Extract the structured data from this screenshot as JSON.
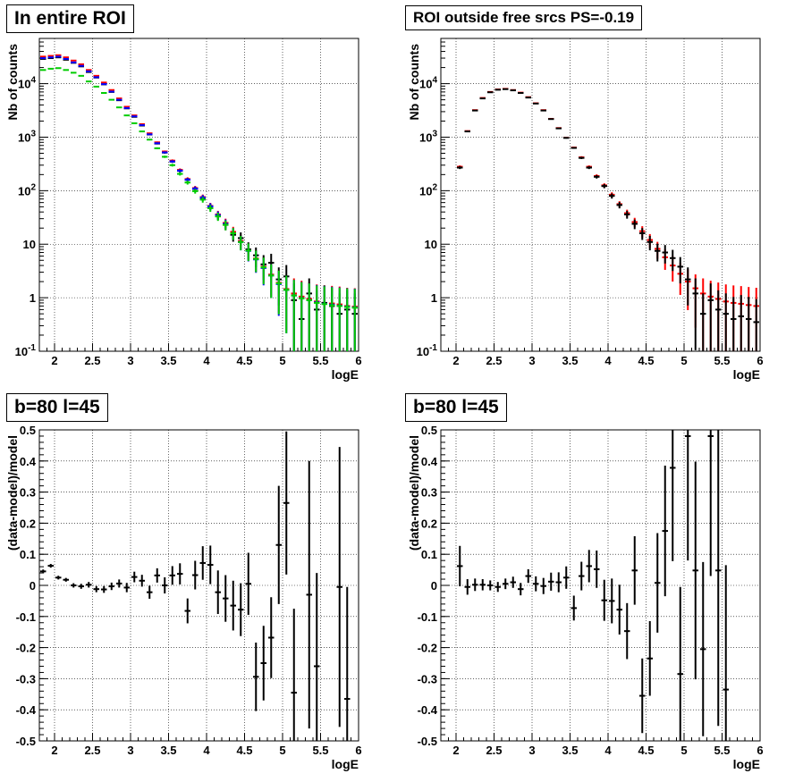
{
  "chart_data": [
    {
      "type": "scatter",
      "title": "In entire ROI",
      "xlabel": "logE",
      "ylabel": "Nb of counts",
      "y_scale": "log",
      "xlim": [
        1.8,
        6.0
      ],
      "ylim": [
        0.1,
        70000
      ],
      "x_ticks": [
        "2",
        "2.5",
        "3",
        "3.5",
        "4",
        "4.5",
        "5",
        "5.5",
        "6"
      ],
      "y_ticks": [
        "10^{-1}",
        "1",
        "10",
        "10^{2}",
        "10^{3}",
        "10^{4}"
      ],
      "grid": true,
      "x": [
        1.85,
        1.95,
        2.05,
        2.15,
        2.25,
        2.35,
        2.45,
        2.55,
        2.65,
        2.75,
        2.85,
        2.95,
        3.05,
        3.15,
        3.25,
        3.35,
        3.45,
        3.55,
        3.65,
        3.75,
        3.85,
        3.95,
        4.05,
        4.15,
        4.25,
        4.35,
        4.45,
        4.55,
        4.65,
        4.75,
        4.85,
        4.95,
        5.05,
        5.15,
        5.25,
        5.35,
        5.45,
        5.55,
        5.65,
        5.75,
        5.85,
        5.95
      ],
      "series": [
        {
          "color": "#ff0000",
          "values": [
            32000,
            33000,
            34000,
            31000,
            27000,
            23000,
            18000,
            14000,
            10500,
            7600,
            5300,
            3700,
            2550,
            1750,
            1180,
            800,
            540,
            365,
            245,
            165,
            112,
            76,
            52,
            36,
            25,
            17,
            11.5,
            7.8,
            5.4,
            3.8,
            2.7,
            1.9,
            1.45,
            1.2,
            1.05,
            0.95,
            0.85,
            0.8,
            0.78,
            0.75,
            0.7,
            0.68
          ]
        },
        {
          "color": "#000000",
          "values": [
            29000,
            30000,
            31000,
            28000,
            24500,
            21000,
            16500,
            13000,
            9700,
            7000,
            4900,
            3450,
            2400,
            1650,
            1120,
            760,
            515,
            350,
            235,
            160,
            108,
            73,
            50,
            34,
            23,
            15,
            13,
            8,
            6.2,
            4.2,
            4.5,
            2.2,
            2.5,
            0.9,
            0.4,
            1.2,
            0.6,
            0.8,
            0.7,
            0.5,
            0.6,
            0.5
          ]
        },
        {
          "color": "#0000ff",
          "values": [
            30000,
            31000,
            32000,
            29000,
            25000,
            21500,
            17000,
            13200,
            9800,
            7100,
            5000,
            3500,
            2450,
            1680,
            1130,
            770,
            520,
            352,
            237,
            160,
            109,
            74,
            51,
            35,
            24,
            16,
            11,
            7.5,
            5.2,
            3.6,
            2.6,
            1.8,
            1.4,
            1.1,
            0.98,
            0.9,
            0.82,
            0.77,
            0.74,
            0.71,
            0.68,
            0.66
          ]
        },
        {
          "color": "#00cc00",
          "values": [
            18000,
            19000,
            19500,
            18000,
            16000,
            14000,
            11000,
            8800,
            6700,
            5000,
            3600,
            2550,
            1820,
            1280,
            900,
            620,
            430,
            300,
            206,
            142,
            98,
            68,
            47,
            33,
            23,
            16,
            11,
            7.6,
            5.3,
            3.7,
            2.6,
            1.85,
            1.4,
            1.1,
            0.97,
            0.9,
            0.8,
            0.76,
            0.72,
            0.7,
            0.67,
            0.65
          ]
        }
      ]
    },
    {
      "type": "scatter",
      "title": "ROI outside free srcs PS=-0.19",
      "xlabel": "logE",
      "ylabel": "Nb of counts",
      "y_scale": "log",
      "xlim": [
        1.8,
        6.0
      ],
      "ylim": [
        0.1,
        70000
      ],
      "x_ticks": [
        "2",
        "2.5",
        "3",
        "3.5",
        "4",
        "4.5",
        "5",
        "5.5",
        "6"
      ],
      "y_ticks": [
        "10^{-1}",
        "1",
        "10",
        "10^{2}",
        "10^{3}",
        "10^{4}"
      ],
      "grid": true,
      "x": [
        2.05,
        2.15,
        2.25,
        2.35,
        2.45,
        2.55,
        2.65,
        2.75,
        2.85,
        2.95,
        3.05,
        3.15,
        3.25,
        3.35,
        3.45,
        3.55,
        3.65,
        3.75,
        3.85,
        3.95,
        4.05,
        4.15,
        4.25,
        4.35,
        4.45,
        4.55,
        4.65,
        4.75,
        4.85,
        4.95,
        5.05,
        5.15,
        5.25,
        5.35,
        5.45,
        5.55,
        5.65,
        5.75,
        5.85,
        5.95
      ],
      "series": [
        {
          "color": "#ff0000",
          "values": [
            280,
            1300,
            3200,
            5400,
            7000,
            7800,
            8000,
            7600,
            6800,
            5600,
            4300,
            3200,
            2200,
            1480,
            980,
            640,
            420,
            280,
            188,
            126,
            84,
            56,
            38,
            26,
            17.5,
            12,
            8.2,
            5.7,
            4,
            2.8,
            2.0,
            1.5,
            1.2,
            1.05,
            0.95,
            0.85,
            0.8,
            0.77,
            0.73,
            0.7
          ]
        },
        {
          "color": "#000000",
          "values": [
            270,
            1280,
            3150,
            5300,
            6900,
            7700,
            7900,
            7500,
            6700,
            5500,
            4250,
            3150,
            2180,
            1460,
            970,
            630,
            410,
            270,
            182,
            122,
            80,
            54,
            36,
            24,
            16,
            11,
            7.5,
            7,
            5.5,
            3.8,
            2.2,
            1.2,
            0.5,
            0.9,
            0.6,
            0.5,
            0.4,
            0.45,
            0.4,
            0.35
          ]
        }
      ]
    },
    {
      "type": "scatter",
      "title": "b=80 l=45",
      "xlabel": "logE",
      "ylabel": "(data-model)/model",
      "xlim": [
        1.8,
        6.0
      ],
      "ylim": [
        -0.5,
        0.5
      ],
      "x_ticks": [
        "2",
        "2.5",
        "3",
        "3.5",
        "4",
        "4.5",
        "5",
        "5.5",
        "6"
      ],
      "y_ticks": [
        "-0.5",
        "-0.4",
        "-0.3",
        "-0.2",
        "-0.1",
        "0",
        "0.1",
        "0.2",
        "0.3",
        "0.4",
        "0.5"
      ],
      "grid": true,
      "x": [
        1.85,
        1.95,
        2.05,
        2.15,
        2.25,
        2.35,
        2.45,
        2.55,
        2.65,
        2.75,
        2.85,
        2.95,
        3.05,
        3.15,
        3.25,
        3.35,
        3.45,
        3.55,
        3.65,
        3.75,
        3.85,
        3.95,
        4.05,
        4.15,
        4.25,
        4.35,
        4.45,
        4.55,
        4.65,
        4.75,
        4.85,
        4.95,
        5.05,
        5.15,
        5.25,
        5.35,
        5.45,
        5.55,
        5.65,
        5.75,
        5.85,
        5.95
      ],
      "series": [
        {
          "color": "#000000",
          "values": [
            0.045,
            0.063,
            0.025,
            0.018,
            0.0,
            -0.003,
            0.002,
            -0.012,
            -0.013,
            -0.003,
            0.006,
            -0.007,
            0.027,
            0.015,
            -0.022,
            0.032,
            0.0,
            0.032,
            0.037,
            -0.082,
            0.033,
            0.072,
            0.066,
            -0.022,
            -0.042,
            -0.065,
            -0.078,
            0.005,
            -0.294,
            -0.25,
            -0.168,
            0.13,
            0.265,
            -0.345,
            null,
            -0.03,
            -0.26,
            null,
            null,
            -0.005,
            -0.365,
            null
          ],
          "errors": [
            0.006,
            0.006,
            0.006,
            0.006,
            0.007,
            0.008,
            0.009,
            0.01,
            0.011,
            0.012,
            0.013,
            0.015,
            0.017,
            0.019,
            0.021,
            0.023,
            0.026,
            0.03,
            0.034,
            0.04,
            0.046,
            0.054,
            0.062,
            0.07,
            0.075,
            0.08,
            0.085,
            0.1,
            0.11,
            0.12,
            0.13,
            0.19,
            0.23,
            0.27,
            null,
            0.43,
            0.3,
            null,
            null,
            0.45,
            0.36,
            null
          ]
        }
      ]
    },
    {
      "type": "scatter",
      "title": "b=80 l=45",
      "xlabel": "logE",
      "ylabel": "(data-model)/model",
      "xlim": [
        1.8,
        6.0
      ],
      "ylim": [
        -0.5,
        0.5
      ],
      "x_ticks": [
        "2",
        "2.5",
        "3",
        "3.5",
        "4",
        "4.5",
        "5",
        "5.5",
        "6"
      ],
      "y_ticks": [
        "-0.5",
        "-0.4",
        "-0.3",
        "-0.2",
        "-0.1",
        "0",
        "0.1",
        "0.2",
        "0.3",
        "0.4",
        "0.5"
      ],
      "grid": true,
      "x": [
        2.05,
        2.15,
        2.25,
        2.35,
        2.45,
        2.55,
        2.65,
        2.75,
        2.85,
        2.95,
        3.05,
        3.15,
        3.25,
        3.35,
        3.45,
        3.55,
        3.65,
        3.75,
        3.85,
        3.95,
        4.05,
        4.15,
        4.25,
        4.35,
        4.45,
        4.55,
        4.65,
        4.75,
        4.85,
        4.95,
        5.05,
        5.15,
        5.25,
        5.35,
        5.45,
        5.55,
        5.65,
        5.75,
        5.85,
        5.95
      ],
      "series": [
        {
          "color": "#000000",
          "values": [
            0.062,
            -0.005,
            0.002,
            0.002,
            0.0,
            -0.005,
            0.005,
            0.01,
            -0.012,
            0.03,
            0.005,
            -0.002,
            0.012,
            0.01,
            0.025,
            -0.073,
            0.03,
            0.062,
            0.052,
            -0.048,
            -0.05,
            -0.078,
            -0.147,
            0.048,
            -0.355,
            -0.235,
            0.008,
            0.175,
            0.378,
            -0.285,
            0.48,
            0.048,
            -0.205,
            0.48,
            0.048,
            -0.335,
            null,
            null,
            null,
            null
          ],
          "errors": [
            0.065,
            0.025,
            0.02,
            0.018,
            0.016,
            0.016,
            0.017,
            0.018,
            0.02,
            0.022,
            0.024,
            0.026,
            0.029,
            0.032,
            0.036,
            0.04,
            0.046,
            0.052,
            0.06,
            0.066,
            0.072,
            0.08,
            0.09,
            0.11,
            0.12,
            0.12,
            0.16,
            0.21,
            0.3,
            0.28,
            0.4,
            0.35,
            0.28,
            0.45,
            0.5,
            0.4,
            null,
            null,
            null,
            null
          ]
        }
      ]
    }
  ]
}
